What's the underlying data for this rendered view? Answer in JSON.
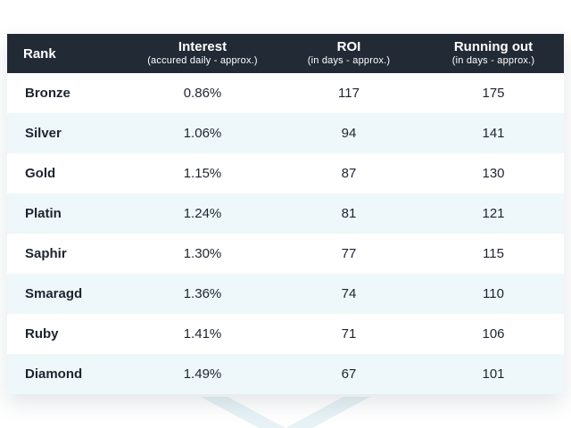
{
  "table": {
    "headers": {
      "rank": "Rank",
      "interest": "Interest",
      "interest_sub": "(accured daily - approx.)",
      "roi": "ROI",
      "roi_sub": "(in days - approx.)",
      "running": "Running out",
      "running_sub": "(in days - approx.)"
    },
    "rows": [
      {
        "rank": "Bronze",
        "interest": "0.86%",
        "roi": "117",
        "running": "175"
      },
      {
        "rank": "Silver",
        "interest": "1.06%",
        "roi": "94",
        "running": "141"
      },
      {
        "rank": "Gold",
        "interest": "1.15%",
        "roi": "87",
        "running": "130"
      },
      {
        "rank": "Platin",
        "interest": "1.24%",
        "roi": "81",
        "running": "121"
      },
      {
        "rank": "Saphir",
        "interest": "1.30%",
        "roi": "77",
        "running": "115"
      },
      {
        "rank": "Smaragd",
        "interest": "1.36%",
        "roi": "74",
        "running": "110"
      },
      {
        "rank": "Ruby",
        "interest": "1.41%",
        "roi": "71",
        "running": "106"
      },
      {
        "rank": "Diamond",
        "interest": "1.49%",
        "roi": "67",
        "running": "101"
      }
    ]
  },
  "colors": {
    "header_bg": "#222a36",
    "stripe_bg": "#eef7f9",
    "text": "#1d2430"
  }
}
